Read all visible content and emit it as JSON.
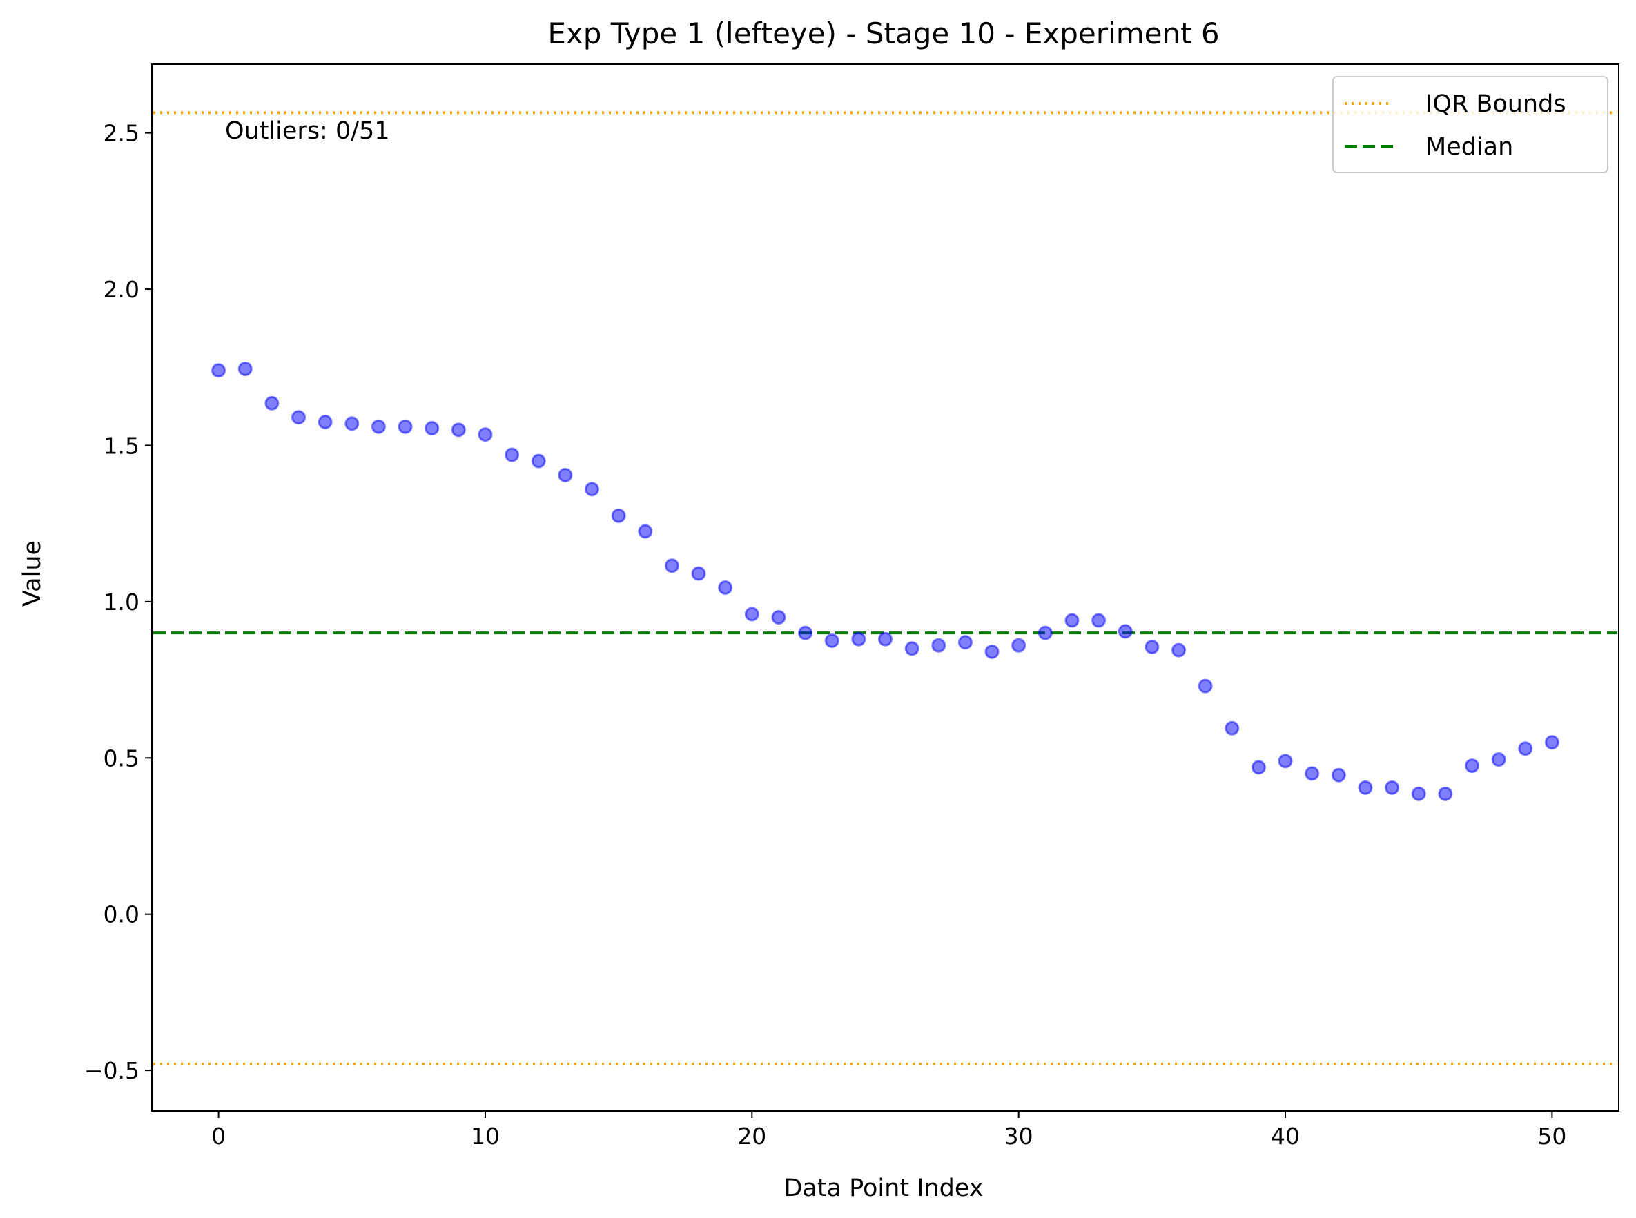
{
  "chart_data": {
    "type": "scatter",
    "title": "Exp Type 1 (lefteye) - Stage 10 - Experiment 6",
    "xlabel": "Data Point Index",
    "ylabel": "Value",
    "xlim": [
      -2.5,
      52.5
    ],
    "ylim": [
      -0.63,
      2.72
    ],
    "xticks": [
      0,
      10,
      20,
      30,
      40,
      50
    ],
    "xtick_labels": [
      "0",
      "10",
      "20",
      "30",
      "40",
      "50"
    ],
    "yticks": [
      -0.5,
      0.0,
      0.5,
      1.0,
      1.5,
      2.0,
      2.5
    ],
    "ytick_labels": [
      "−0.5",
      "0.0",
      "0.5",
      "1.0",
      "1.5",
      "2.0",
      "2.5"
    ],
    "grid": false,
    "point_color": "#0000ff",
    "x": [
      0,
      1,
      2,
      3,
      4,
      5,
      6,
      7,
      8,
      9,
      10,
      11,
      12,
      13,
      14,
      15,
      16,
      17,
      18,
      19,
      20,
      21,
      22,
      23,
      24,
      25,
      26,
      27,
      28,
      29,
      30,
      31,
      32,
      33,
      34,
      35,
      36,
      37,
      38,
      39,
      40,
      41,
      42,
      43,
      44,
      45,
      46,
      47,
      48,
      49,
      50
    ],
    "y": [
      1.74,
      1.745,
      1.635,
      1.59,
      1.575,
      1.57,
      1.56,
      1.56,
      1.555,
      1.55,
      1.535,
      1.47,
      1.45,
      1.405,
      1.36,
      1.275,
      1.225,
      1.115,
      1.09,
      1.045,
      0.96,
      0.95,
      0.9,
      0.875,
      0.88,
      0.88,
      0.85,
      0.86,
      0.87,
      0.84,
      0.86,
      0.9,
      0.94,
      0.94,
      0.905,
      0.855,
      0.845,
      0.73,
      0.595,
      0.47,
      0.49,
      0.45,
      0.445,
      0.405,
      0.405,
      0.385,
      0.385,
      0.475,
      0.495,
      0.53,
      0.55
    ],
    "reference_lines": [
      {
        "name": "IQR Bounds",
        "y": 2.565,
        "color": "#ffa500",
        "style": "dotted"
      },
      {
        "name": "IQR Bounds",
        "y": -0.48,
        "color": "#ffa500",
        "style": "dotted"
      },
      {
        "name": "Median",
        "y": 0.9,
        "color": "#008000",
        "style": "dashed"
      }
    ],
    "legend": {
      "placement": "top-right",
      "entries": [
        {
          "label": "IQR Bounds",
          "color": "#ffa500",
          "style": "dotted"
        },
        {
          "label": "Median",
          "color": "#008000",
          "style": "dashed"
        }
      ]
    },
    "annotation": "Outliers: 0/51"
  }
}
